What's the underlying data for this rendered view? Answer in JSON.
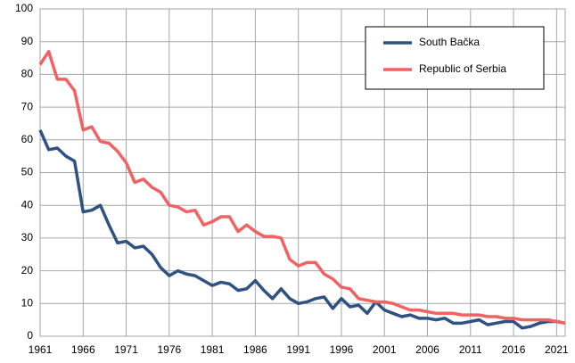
{
  "chart_data": {
    "type": "line",
    "x": [
      1961,
      1962,
      1963,
      1964,
      1965,
      1966,
      1967,
      1968,
      1969,
      1970,
      1971,
      1972,
      1973,
      1974,
      1975,
      1976,
      1977,
      1978,
      1979,
      1980,
      1981,
      1982,
      1983,
      1984,
      1985,
      1986,
      1987,
      1988,
      1989,
      1990,
      1991,
      1992,
      1993,
      1994,
      1995,
      1996,
      1997,
      1998,
      1999,
      2000,
      2001,
      2002,
      2003,
      2004,
      2005,
      2006,
      2007,
      2008,
      2009,
      2010,
      2011,
      2012,
      2013,
      2014,
      2015,
      2016,
      2017,
      2018,
      2019,
      2020,
      2021,
      2022
    ],
    "series": [
      {
        "name": "South Bačka",
        "color": "#2e5283",
        "values": [
          63,
          57,
          57.5,
          55,
          53.5,
          38,
          38.5,
          40,
          34,
          28.5,
          29,
          27,
          27.5,
          25,
          21,
          18.5,
          20,
          19,
          18.5,
          17,
          15.5,
          16.5,
          16,
          14,
          14.5,
          17,
          14,
          11.5,
          14.5,
          11.5,
          10,
          10.5,
          11.5,
          12,
          8.5,
          11.5,
          9,
          9.5,
          7,
          10.5,
          8,
          7,
          6,
          6.5,
          5.5,
          5.5,
          5,
          5.5,
          4,
          4,
          4.5,
          5,
          3.5,
          4,
          4.5,
          4.5,
          2.5,
          3,
          4,
          4.5,
          4.5,
          4
        ]
      },
      {
        "name": "Republic of Serbia",
        "color": "#f36262",
        "values": [
          83,
          87,
          78.5,
          78.5,
          75,
          63,
          64,
          59.5,
          59,
          56.5,
          53,
          47,
          48,
          45.5,
          44,
          40,
          39.5,
          38,
          38.5,
          34,
          35,
          36.5,
          36.5,
          32,
          34,
          32,
          30.5,
          30.5,
          30,
          23.5,
          21.5,
          22.5,
          22.5,
          19,
          17.5,
          15,
          14.5,
          11.5,
          11,
          10.5,
          10.5,
          10,
          9,
          8,
          8,
          7.5,
          7,
          7,
          7,
          6.5,
          6.5,
          6.5,
          6,
          6,
          5.5,
          5.5,
          5,
          5,
          5,
          5,
          4.5,
          4
        ]
      }
    ],
    "xlim": [
      1961,
      2022
    ],
    "xticks": [
      1961,
      1966,
      1971,
      1976,
      1981,
      1986,
      1991,
      1996,
      2001,
      2006,
      2011,
      2016,
      2021
    ],
    "ylim": [
      0,
      100
    ],
    "yticks": [
      0,
      10,
      20,
      30,
      40,
      50,
      60,
      70,
      80,
      90,
      100
    ],
    "grid": true,
    "legend": "upper right"
  }
}
